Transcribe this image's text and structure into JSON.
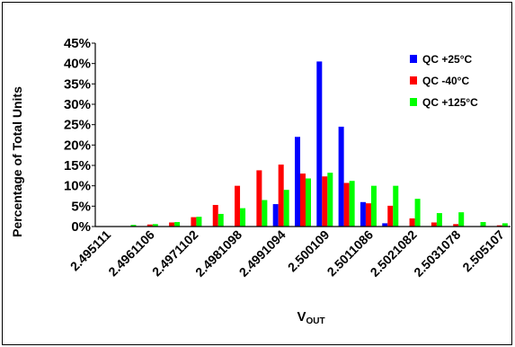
{
  "chart_data": {
    "type": "bar",
    "ylabel": "Percentage of Total Units",
    "xlabel_main": "V",
    "xlabel_sub": "OUT",
    "ylim": [
      0,
      45
    ],
    "yticks": [
      "0%",
      "5%",
      "10%",
      "15%",
      "20%",
      "25%",
      "30%",
      "35%",
      "40%",
      "45%"
    ],
    "xtick_labels": [
      "2.495111",
      "2.4961106",
      "2.4971102",
      "2.4981098",
      "2.4991094",
      "2.500109",
      "2.5011086",
      "2.5021082",
      "2.5031078",
      "2.505107"
    ],
    "xtick_positions": [
      0,
      2,
      4,
      6,
      8,
      10,
      12,
      14,
      16,
      18
    ],
    "bin_count": 19,
    "grid": false,
    "legend_position": "top-right",
    "series": [
      {
        "name": "QC +25°C",
        "color": "#0000ff",
        "values": [
          0,
          0,
          0,
          0,
          0,
          0,
          0,
          0,
          5.5,
          22,
          40.5,
          24.5,
          6,
          0.8,
          0,
          0,
          0,
          0,
          0
        ]
      },
      {
        "name": "QC -40°C",
        "color": "#ff0000",
        "values": [
          0,
          0,
          0.5,
          1,
          2.3,
          5.3,
          10,
          13.8,
          15.2,
          13,
          12.3,
          10.7,
          5.7,
          5.1,
          2,
          1,
          0.6,
          0,
          0.3
        ]
      },
      {
        "name": "QC +125°C",
        "color": "#00ff00",
        "values": [
          0,
          0.4,
          0.6,
          1.1,
          2.4,
          3.1,
          4.5,
          6.5,
          9,
          11.8,
          13.2,
          11.2,
          10,
          10,
          6.8,
          3.3,
          3.5,
          1.1,
          0.8
        ]
      }
    ]
  }
}
